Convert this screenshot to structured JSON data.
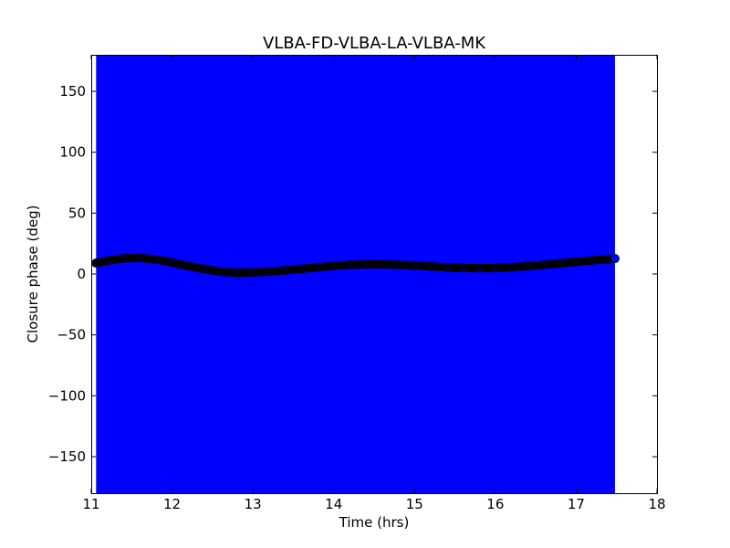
{
  "chart_data": {
    "type": "scatter",
    "title": "VLBA-FD-VLBA-LA-VLBA-MK",
    "xlabel": "Time (hrs)",
    "ylabel": "Closure phase (deg)",
    "xlim": [
      11,
      18
    ],
    "ylim": [
      -180,
      180
    ],
    "xticks": [
      "11",
      "12",
      "13",
      "14",
      "15",
      "16",
      "17",
      "18"
    ],
    "yticks": [
      "150",
      "100",
      "50",
      "0",
      "−50",
      "−100",
      "−150"
    ],
    "ytick_values": [
      150,
      100,
      50,
      0,
      -50,
      -100,
      -150
    ],
    "xtick_values": [
      11,
      12,
      13,
      14,
      15,
      16,
      17,
      18
    ],
    "grid": false,
    "band": {
      "x_range": [
        11.06,
        17.48
      ],
      "y_range": [
        -180,
        180
      ],
      "color": "#0000ff"
    },
    "series": [
      {
        "color": "#000000",
        "marker_face": "#0000ff",
        "x": [
          11.06,
          11.2,
          11.4,
          11.6,
          11.8,
          12.0,
          12.2,
          12.4,
          12.6,
          12.8,
          13.0,
          13.2,
          13.4,
          13.6,
          13.8,
          14.0,
          14.2,
          14.4,
          14.6,
          14.8,
          15.0,
          15.2,
          15.4,
          15.6,
          15.8,
          16.0,
          16.2,
          16.4,
          16.6,
          16.8,
          17.0,
          17.2,
          17.4,
          17.48
        ],
        "y": [
          9,
          11,
          12.8,
          13.2,
          12,
          9.5,
          6.5,
          4,
          2,
          1,
          1.2,
          2,
          3,
          4.2,
          5.5,
          6.7,
          7.6,
          8,
          8,
          7.6,
          7,
          6.2,
          5.5,
          5,
          4.8,
          5,
          5.6,
          6.5,
          7.6,
          8.8,
          10,
          11.2,
          12.3,
          12.7
        ]
      }
    ]
  }
}
